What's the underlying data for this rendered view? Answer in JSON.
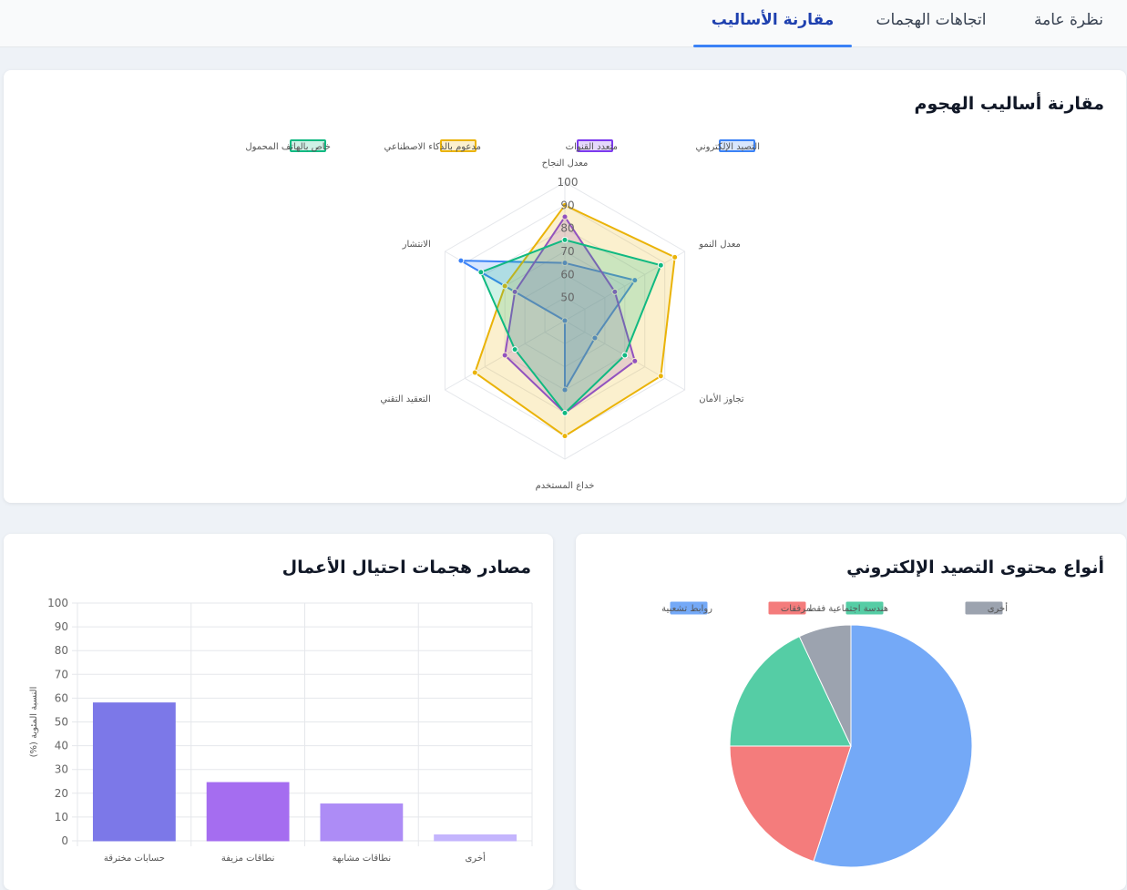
{
  "tabs": [
    {
      "label": "نظرة عامة",
      "active": false
    },
    {
      "label": "اتجاهات الهجمات",
      "active": false
    },
    {
      "label": "مقارنة الأساليب",
      "active": true
    }
  ],
  "colors": {
    "accent": "#3b82f6",
    "phishing": "#3b82f6",
    "multichannel": "#7c3aed",
    "ai": "#eab308",
    "mobile": "#10b981"
  },
  "radar_card": {
    "title": "مقارنة أساليب الهجوم"
  },
  "pie_card": {
    "title": "أنواع محتوى التصيد الإلكتروني"
  },
  "bar_card": {
    "title": "مصادر هجمات احتيال الأعمال"
  },
  "chart_data": [
    {
      "type": "radar",
      "title": "مقارنة أساليب الهجوم",
      "axes": [
        "معدل النجاح",
        "معدل النمو",
        "تجاوز الأمان",
        "خداع المستخدم",
        "التعقيد التقني",
        "الانتشار"
      ],
      "scale": {
        "min": 40,
        "max": 100,
        "ticks": [
          50,
          60,
          70,
          80,
          90,
          100
        ]
      },
      "legend_position": "top",
      "series": [
        {
          "name": "التصيد الإلكتروني",
          "color": "#3b82f6",
          "values": [
            65,
            75,
            55,
            70,
            40,
            92
          ]
        },
        {
          "name": "متعدد القنوات",
          "color": "#7c3aed",
          "values": [
            85,
            65,
            75,
            80,
            70,
            65
          ]
        },
        {
          "name": "مدعوم بالذكاء الاصطناعي",
          "color": "#eab308",
          "values": [
            90,
            95,
            88,
            90,
            85,
            70
          ]
        },
        {
          "name": "خاص بالهاتف المحمول",
          "color": "#10b981",
          "values": [
            75,
            88,
            70,
            80,
            65,
            82
          ]
        }
      ]
    },
    {
      "type": "pie",
      "title": "أنواع محتوى التصيد الإلكتروني",
      "legend_position": "top",
      "slices": [
        {
          "label": "روابط تشعبية",
          "value": 55,
          "color": "#74a9f7"
        },
        {
          "label": "مرفقات",
          "value": 20,
          "color": "#f47c7c"
        },
        {
          "label": "هندسة اجتماعية فقط",
          "value": 18,
          "color": "#55cda5"
        },
        {
          "label": "أخرى",
          "value": 7,
          "color": "#9ca3af"
        }
      ]
    },
    {
      "type": "bar",
      "title": "مصادر هجمات احتيال الأعمال",
      "categories": [
        "حسابات مخترقة",
        "نطاقات مزيفة",
        "نطاقات مشابهة",
        "أخرى"
      ],
      "values": [
        58,
        24.5,
        15.5,
        2.5
      ],
      "colors": [
        "#7c78e8",
        "#a56df0",
        "#ad8cf6",
        "#c4b5fd"
      ],
      "ylabel": "النسبة المئوية (%)",
      "ylim": [
        0,
        100
      ],
      "yticks": [
        0,
        10,
        20,
        30,
        40,
        50,
        60,
        70,
        80,
        90,
        100
      ],
      "grid": true
    }
  ]
}
